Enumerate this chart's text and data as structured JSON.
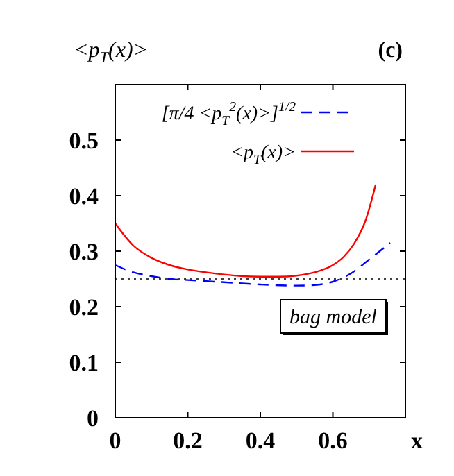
{
  "chart_data": {
    "type": "line",
    "ylabel": "<p$_{T}$(x)>",
    "xlabel": "x",
    "annotations": [
      "(c)",
      "bag model"
    ],
    "xlim": [
      0,
      0.8
    ],
    "xticks": [
      0,
      0.2,
      0.4,
      0.6
    ],
    "ylim": [
      0,
      0.6
    ],
    "yticks": [
      0,
      0.1,
      0.2,
      0.3,
      0.4,
      0.5
    ],
    "legend": "top left",
    "grid": false,
    "ref_lines": [
      {
        "axis": "y",
        "value": 0.25,
        "color": "#000000",
        "line_style": "dotted"
      }
    ],
    "series": [
      {
        "name": "[π/4 <p$_{T}$$^{2}$(x)>]$^{1/2}$",
        "color": "#0000ff",
        "line_style": "dashed",
        "x": [
          0,
          0.05,
          0.1,
          0.15,
          0.2,
          0.3,
          0.4,
          0.5,
          0.55,
          0.6,
          0.65,
          0.7,
          0.758
        ],
        "values": [
          0.275,
          0.262,
          0.255,
          0.25,
          0.248,
          0.244,
          0.24,
          0.238,
          0.239,
          0.245,
          0.26,
          0.285,
          0.315
        ]
      },
      {
        "name": "<p$_{T}$(x)>",
        "color": "#ff0000",
        "line_style": "solid",
        "x": [
          0,
          0.05,
          0.1,
          0.15,
          0.2,
          0.25,
          0.3,
          0.35,
          0.4,
          0.45,
          0.5,
          0.55,
          0.6,
          0.63,
          0.66,
          0.69,
          0.718
        ],
        "values": [
          0.35,
          0.31,
          0.288,
          0.275,
          0.267,
          0.262,
          0.258,
          0.255,
          0.254,
          0.254,
          0.256,
          0.262,
          0.275,
          0.29,
          0.315,
          0.355,
          0.42
        ]
      }
    ]
  }
}
